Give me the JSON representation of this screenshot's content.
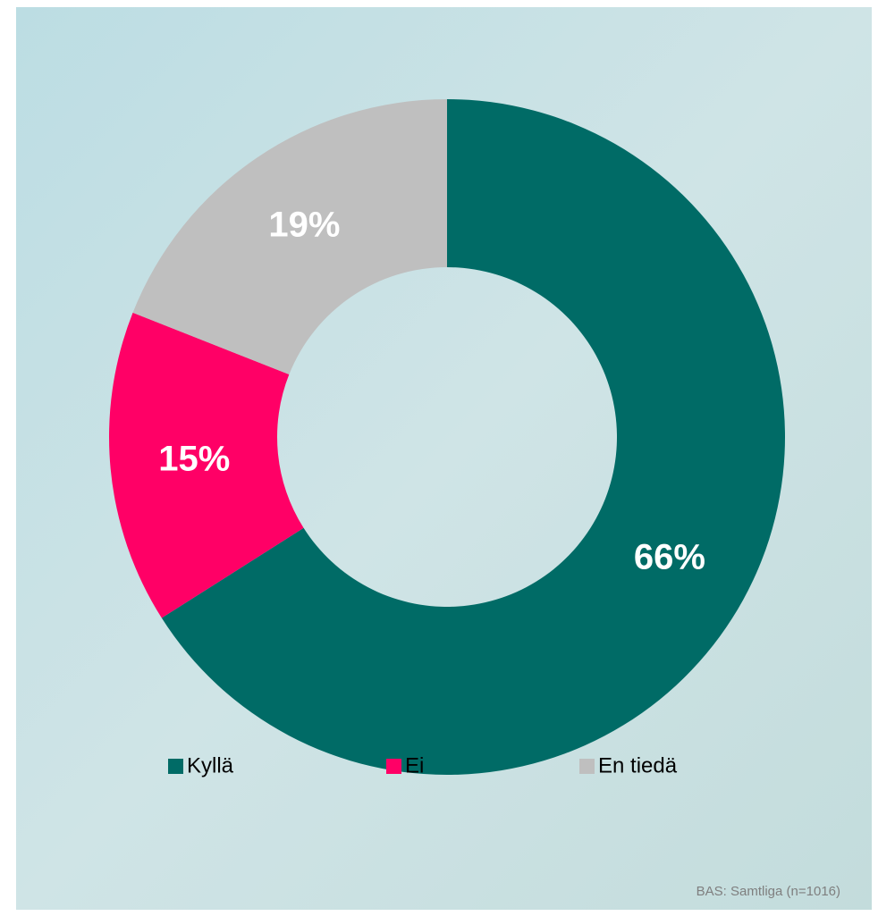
{
  "chart_data": {
    "type": "donut",
    "categories": [
      "Kyllä",
      "Ei",
      "En tiedä"
    ],
    "values": [
      66,
      15,
      19
    ],
    "value_labels": [
      "66%",
      "15%",
      "19%"
    ],
    "colors": [
      "#006b66",
      "#ff0066",
      "#bfbfbf"
    ],
    "note": "BAS: Samtliga (n=1016)",
    "legend": "bottom"
  }
}
